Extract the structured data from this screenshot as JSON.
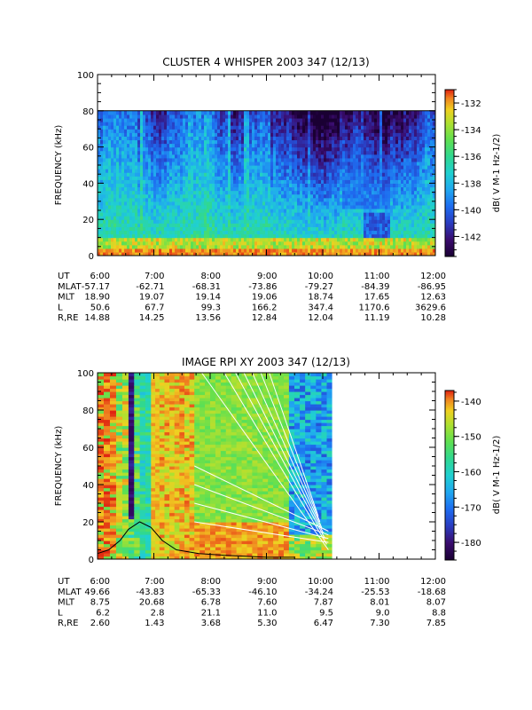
{
  "colors": {
    "background": "#ffffff",
    "ink": "#000000",
    "colormap": [
      "#1a0033",
      "#3a0c6e",
      "#2a3cc0",
      "#1e6cf0",
      "#20a8f0",
      "#20d0d0",
      "#30d890",
      "#60e050",
      "#b0e030",
      "#f0d020",
      "#f08020",
      "#e02010"
    ]
  },
  "chart_data": [
    {
      "type": "heatmap",
      "title": "CLUSTER 4 WHISPER 2003 347 (12/13)",
      "ylabel": "FREQUENCY (kHz)",
      "ylim": [
        0,
        100
      ],
      "yticks": [
        "0",
        "20",
        "40",
        "60",
        "80",
        "100"
      ],
      "data_max_frequency_khz": 80,
      "colorbar": {
        "label": "dB( V M-1 Hz-1/2)",
        "ticks": [
          "-132",
          "-134",
          "-136",
          "-138",
          "-140",
          "-142"
        ],
        "range": [
          -143.5,
          -131
        ]
      },
      "table": {
        "row_labels": [
          "UT",
          "MLAT",
          "MLT",
          "L",
          "R,RE"
        ],
        "columns": [
          {
            "UT": "6:00",
            "MLAT": "-57.17",
            "MLT": "18.90",
            "L": "50.6",
            "R,RE": "14.88"
          },
          {
            "UT": "7:00",
            "MLAT": "-62.71",
            "MLT": "19.07",
            "L": "67.7",
            "R,RE": "14.25"
          },
          {
            "UT": "8:00",
            "MLAT": "-68.31",
            "MLT": "19.14",
            "L": "99.3",
            "R,RE": "13.56"
          },
          {
            "UT": "9:00",
            "MLAT": "-73.86",
            "MLT": "19.06",
            "L": "166.2",
            "R,RE": "12.84"
          },
          {
            "UT": "10:00",
            "MLAT": "-79.27",
            "MLT": "18.74",
            "L": "347.4",
            "R,RE": "12.04"
          },
          {
            "UT": "11:00",
            "MLAT": "-84.39",
            "MLT": "17.65",
            "L": "1170.6",
            "R,RE": "11.19"
          },
          {
            "UT": "12:00",
            "MLAT": "-86.95",
            "MLT": "12.63",
            "L": "3629.6",
            "R,RE": "10.28"
          }
        ]
      }
    },
    {
      "type": "heatmap",
      "title": "IMAGE RPI XY 2003 347 (12/13)",
      "ylabel": "FREQUENCY (kHz)",
      "ylim": [
        0,
        100
      ],
      "yticks": [
        "0",
        "20",
        "40",
        "60",
        "80",
        "100"
      ],
      "data_coverage_ut": [
        "6:00",
        "10:10"
      ],
      "colorbar": {
        "label": "dB( V M-1 Hz-1/2)",
        "ticks": [
          "-140",
          "-150",
          "-160",
          "-170",
          "-180"
        ],
        "range": [
          -185,
          -137
        ]
      },
      "overlay_curve": {
        "x_hours": [
          6.0,
          6.2,
          6.4,
          6.55,
          6.75,
          6.95,
          7.15,
          7.4,
          7.8,
          8.3,
          9.0,
          9.5
        ],
        "y_khz": [
          3,
          5,
          10,
          16,
          20,
          17,
          10,
          5,
          3,
          2,
          1,
          1
        ]
      },
      "table": {
        "row_labels": [
          "UT",
          "MLAT",
          "MLT",
          "L",
          "R,RE"
        ],
        "columns": [
          {
            "UT": "6:00",
            "MLAT": "49.66",
            "MLT": "8.75",
            "L": "6.2",
            "R,RE": "2.60"
          },
          {
            "UT": "7:00",
            "MLAT": "-43.83",
            "MLT": "20.68",
            "L": "2.8",
            "R,RE": "1.43"
          },
          {
            "UT": "8:00",
            "MLAT": "-65.33",
            "MLT": "6.78",
            "L": "21.1",
            "R,RE": "3.68"
          },
          {
            "UT": "9:00",
            "MLAT": "-46.10",
            "MLT": "7.60",
            "L": "11.0",
            "R,RE": "5.30"
          },
          {
            "UT": "10:00",
            "MLAT": "-34.24",
            "MLT": "7.87",
            "L": "9.5",
            "R,RE": "6.47"
          },
          {
            "UT": "11:00",
            "MLAT": "-25.53",
            "MLT": "8.01",
            "L": "9.0",
            "R,RE": "7.30"
          },
          {
            "UT": "12:00",
            "MLAT": "-18.68",
            "MLT": "8.07",
            "L": "8.8",
            "R,RE": "7.85"
          }
        ]
      }
    }
  ]
}
